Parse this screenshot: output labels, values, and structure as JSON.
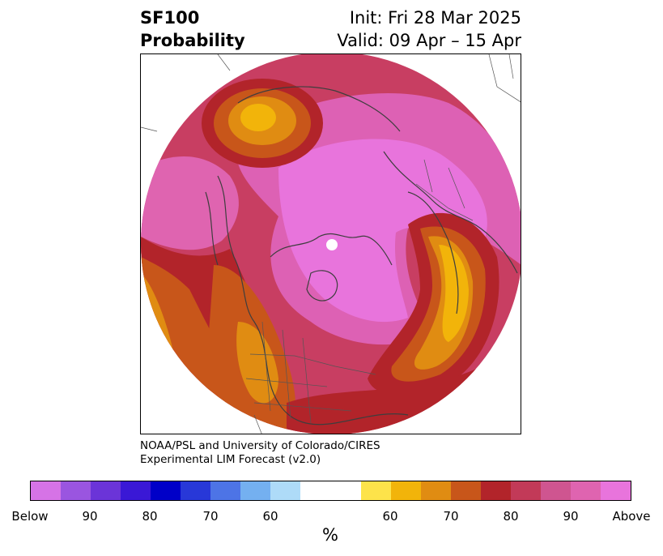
{
  "title": {
    "product": "SF100",
    "kind": "Probability",
    "init": "Init: Fri 28 Mar 2025",
    "valid": "Valid: 09 Apr – 15 Apr"
  },
  "credit": {
    "line1": "NOAA/PSL and University of Colorado/CIRES",
    "line2": "Experimental LIM Forecast (v2.0)"
  },
  "colorbar": {
    "colors": [
      "#d673e6",
      "#9a55e0",
      "#6b34d8",
      "#3a18d6",
      "#0000c8",
      "#2838d8",
      "#4d74e6",
      "#74b0f0",
      "#aedbf8",
      "#ffffff",
      "#ffffff",
      "#fde34a",
      "#f2b40a",
      "#e08c12",
      "#c8561a",
      "#b2242a",
      "#c23a58",
      "#cf5590",
      "#df64b0",
      "#e874dc"
    ],
    "tick_labels": [
      "Below",
      "90",
      "80",
      "70",
      "60",
      "60",
      "70",
      "80",
      "90",
      "Above"
    ],
    "unit": "%"
  },
  "map": {
    "projection": "north polar stereographic",
    "legend": "categorical probability shading",
    "region": "Northern Hemisphere"
  }
}
